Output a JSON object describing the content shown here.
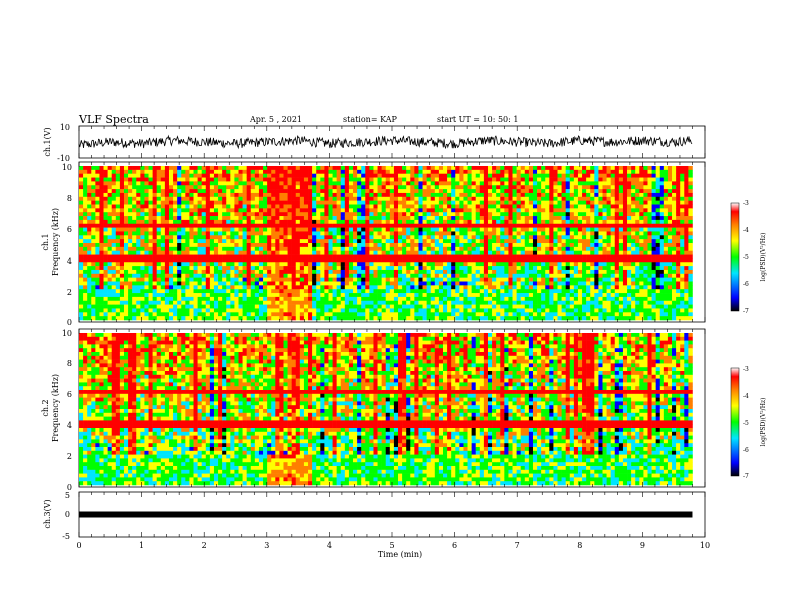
{
  "header": {
    "title": "VLF Spectra",
    "date": "Apr. 5  , 2021",
    "station": "station= KAP",
    "start": "start  UT  =   10: 50: 1"
  },
  "chart_data": [
    {
      "type": "line",
      "panel": "ch1-waveform",
      "ylabel": "ch.1(V)",
      "ylim": [
        -10,
        10
      ],
      "yticklabels": [
        "10",
        "-10"
      ],
      "xlim": [
        0,
        10
      ],
      "series": [
        {
          "x": [
            0,
            0.5,
            1,
            1.5,
            2,
            2.5,
            3,
            3.5,
            4,
            4.5,
            5,
            5.5,
            6,
            6.5,
            7,
            7.5,
            8,
            8.5,
            9,
            9.5,
            9.8
          ],
          "values": [
            -2,
            0,
            -1,
            1,
            0,
            -1,
            0,
            1,
            -1,
            0,
            1,
            0,
            -1,
            1,
            0,
            -1,
            1,
            0,
            1,
            0,
            1
          ]
        }
      ]
    },
    {
      "type": "heatmap",
      "panel": "ch1-spectrogram",
      "ylabel": "ch.1",
      "ylabel2": "Frequency  (kHz)",
      "ylim": [
        0,
        10
      ],
      "yticklabels": [
        "0",
        "2",
        "4",
        "6",
        "8",
        "10"
      ],
      "xlim": [
        0,
        10
      ],
      "colorbar": {
        "label": "log(PSD)(V²/Hz)",
        "range": [
          -7,
          -3
        ],
        "ticklabels": [
          "-3",
          "-4",
          "-5",
          "-6",
          "-7"
        ]
      }
    },
    {
      "type": "heatmap",
      "panel": "ch2-spectrogram",
      "ylabel": "ch.2",
      "ylabel2": "Frequency  (kHz)",
      "ylim": [
        0,
        10
      ],
      "yticklabels": [
        "0",
        "2",
        "4",
        "6",
        "8",
        "10"
      ],
      "xlim": [
        0,
        10
      ],
      "colorbar": {
        "label": "log(PSD)(V²/Hz)",
        "range": [
          -7,
          -3
        ],
        "ticklabels": [
          "-3",
          "-4",
          "-5",
          "-6",
          "-7"
        ]
      }
    },
    {
      "type": "line",
      "panel": "ch3-waveform",
      "ylabel": "ch.3(V)",
      "ylim": [
        -5,
        5
      ],
      "yticklabels": [
        "5",
        "0",
        "-5"
      ],
      "xlim": [
        0,
        10
      ],
      "xlabel": "Time  (min)",
      "xticklabels": [
        "0",
        "1",
        "2",
        "3",
        "4",
        "5",
        "6",
        "7",
        "8",
        "9",
        "10"
      ],
      "series": [
        {
          "x": [
            0,
            9.8
          ],
          "values": [
            0,
            0
          ]
        }
      ]
    }
  ],
  "colors": {
    "colormap": [
      "#000000",
      "#0000ff",
      "#00e5ff",
      "#00ff00",
      "#ffff00",
      "#ff7f00",
      "#ff0000",
      "#ffffff"
    ],
    "trace": "#000000"
  }
}
